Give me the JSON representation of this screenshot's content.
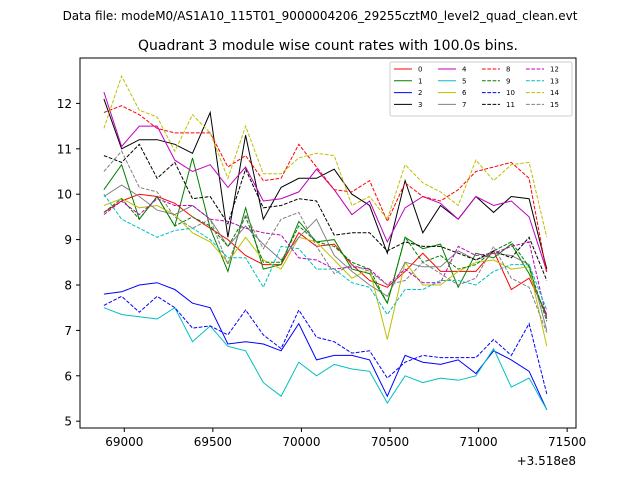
{
  "chart_data": {
    "type": "line",
    "suptitle": "Data file: modeM0/AS1A10_115T01_9000004206_29255cztM0_level2_quad_clean.evt",
    "title": "Quadrant 3 module wise count rates with 100.0s bins.",
    "xlabel": "",
    "ylabel": "",
    "x_offset_label": "+3.518e8",
    "xlim": [
      68750,
      71550
    ],
    "ylim": [
      4.85,
      13.0
    ],
    "xticks": [
      69000,
      69500,
      70000,
      70500,
      71000,
      71500
    ],
    "xtick_labels": [
      "69000",
      "69500",
      "70000",
      "70500",
      "71000",
      "71500"
    ],
    "yticks": [
      5,
      6,
      7,
      8,
      9,
      10,
      11,
      12
    ],
    "ytick_labels": [
      "5",
      "6",
      "7",
      "8",
      "9",
      "10",
      "11",
      "12"
    ],
    "x": [
      68885,
      68985,
      69085,
      69185,
      69285,
      69385,
      69485,
      69585,
      69685,
      69785,
      69885,
      69985,
      70085,
      70185,
      70285,
      70385,
      70485,
      70585,
      70685,
      70785,
      70885,
      70985,
      71085,
      71185,
      71285,
      71385
    ],
    "series": [
      {
        "name": "0",
        "color": "#ff0000",
        "dash": "solid",
        "values": [
          9.6,
          9.85,
          10.0,
          9.95,
          9.8,
          9.5,
          9.25,
          9.0,
          8.65,
          8.45,
          8.45,
          9.15,
          8.85,
          8.9,
          8.45,
          8.1,
          7.95,
          8.3,
          8.7,
          8.3,
          8.3,
          8.3,
          8.75,
          7.9,
          8.15,
          7.35
        ]
      },
      {
        "name": "1",
        "color": "#008000",
        "dash": "solid",
        "values": [
          10.1,
          10.65,
          9.45,
          9.95,
          9.3,
          10.8,
          9.25,
          8.3,
          9.7,
          8.35,
          8.45,
          9.4,
          8.95,
          9.0,
          8.35,
          8.25,
          7.6,
          9.05,
          8.8,
          8.9,
          7.95,
          8.7,
          8.6,
          8.9,
          8.25,
          7.3
        ]
      },
      {
        "name": "2",
        "color": "#0000ff",
        "dash": "solid",
        "values": [
          7.8,
          7.85,
          8.0,
          8.05,
          7.9,
          7.6,
          7.5,
          6.7,
          6.75,
          6.7,
          6.55,
          7.15,
          6.35,
          6.45,
          6.45,
          6.35,
          5.55,
          6.45,
          6.3,
          6.25,
          6.35,
          6.05,
          6.55,
          6.35,
          6.1,
          5.25
        ]
      },
      {
        "name": "3",
        "color": "#000000",
        "dash": "solid",
        "values": [
          12.1,
          11.0,
          11.2,
          11.2,
          11.1,
          10.9,
          11.8,
          9.05,
          11.3,
          9.45,
          10.15,
          10.35,
          10.35,
          10.55,
          10.0,
          9.75,
          8.7,
          10.3,
          9.15,
          9.75,
          9.45,
          9.95,
          9.6,
          9.95,
          9.9,
          8.35
        ]
      },
      {
        "name": "4",
        "color": "#bf00bf",
        "dash": "solid",
        "values": [
          12.25,
          11.05,
          11.5,
          11.5,
          10.75,
          10.5,
          10.65,
          10.15,
          10.6,
          9.85,
          9.9,
          10.05,
          10.55,
          10.1,
          9.55,
          9.85,
          8.95,
          9.7,
          9.95,
          9.8,
          9.45,
          9.95,
          9.75,
          9.85,
          9.5,
          8.3
        ]
      },
      {
        "name": "5",
        "color": "#00bfbf",
        "dash": "solid",
        "values": [
          7.5,
          7.35,
          7.3,
          7.25,
          7.5,
          6.75,
          7.1,
          6.65,
          6.55,
          5.85,
          5.55,
          6.3,
          6.0,
          6.25,
          6.15,
          6.1,
          5.4,
          6.0,
          5.85,
          5.95,
          5.9,
          6.0,
          6.6,
          5.75,
          5.95,
          5.25
        ]
      },
      {
        "name": "6",
        "color": "#bfbf00",
        "dash": "solid",
        "values": [
          9.75,
          9.9,
          9.7,
          9.75,
          9.55,
          9.15,
          8.95,
          8.5,
          9.05,
          8.55,
          8.35,
          9.05,
          8.95,
          8.55,
          8.15,
          8.35,
          6.8,
          8.5,
          8.0,
          8.0,
          8.3,
          8.5,
          8.55,
          8.35,
          8.4,
          6.65
        ]
      },
      {
        "name": "7",
        "color": "#808080",
        "dash": "solid",
        "values": [
          9.95,
          10.2,
          9.95,
          9.65,
          9.55,
          9.75,
          9.45,
          8.85,
          9.3,
          8.9,
          8.55,
          9.05,
          9.45,
          8.65,
          8.3,
          8.0,
          7.75,
          8.5,
          8.4,
          8.4,
          8.75,
          8.55,
          8.7,
          8.65,
          8.45,
          7.0
        ]
      },
      {
        "name": "8",
        "color": "#ff0000",
        "dash": "dashed",
        "values": [
          11.8,
          11.95,
          11.75,
          11.45,
          11.35,
          11.35,
          11.35,
          10.6,
          10.85,
          10.3,
          10.35,
          11.1,
          10.6,
          10.1,
          10.05,
          10.3,
          9.4,
          10.25,
          9.95,
          9.85,
          10.1,
          10.5,
          10.6,
          10.7,
          10.35,
          8.25
        ]
      },
      {
        "name": "9",
        "color": "#008000",
        "dash": "dashed",
        "values": [
          9.6,
          9.9,
          9.45,
          9.95,
          9.3,
          9.5,
          9.3,
          8.85,
          9.5,
          8.5,
          8.5,
          9.3,
          8.95,
          8.85,
          8.5,
          8.35,
          7.6,
          9.05,
          8.5,
          8.65,
          8.35,
          8.45,
          8.75,
          8.95,
          8.4,
          7.2
        ]
      },
      {
        "name": "10",
        "color": "#0000ff",
        "dash": "dashed",
        "values": [
          7.55,
          7.75,
          7.4,
          7.75,
          7.5,
          7.05,
          7.1,
          6.9,
          7.45,
          6.9,
          6.6,
          7.45,
          6.85,
          6.75,
          6.5,
          6.55,
          5.95,
          6.3,
          6.45,
          6.4,
          6.4,
          6.4,
          6.8,
          6.45,
          7.15,
          5.6
        ]
      },
      {
        "name": "11",
        "color": "#000000",
        "dash": "dashed",
        "values": [
          10.85,
          10.7,
          11.1,
          10.35,
          10.7,
          9.9,
          9.95,
          9.35,
          10.55,
          9.7,
          9.75,
          9.9,
          9.85,
          9.1,
          9.15,
          9.15,
          8.75,
          8.95,
          8.85,
          8.85,
          8.7,
          8.55,
          8.75,
          8.6,
          9.05,
          8.1
        ]
      },
      {
        "name": "12",
        "color": "#bf00bf",
        "dash": "dashed",
        "values": [
          9.55,
          9.85,
          9.55,
          9.9,
          9.75,
          9.75,
          9.45,
          9.4,
          9.25,
          9.15,
          9.1,
          8.6,
          8.55,
          8.35,
          8.4,
          8.35,
          8.0,
          8.35,
          8.05,
          8.05,
          8.85,
          8.65,
          8.7,
          8.85,
          8.95,
          7.25
        ]
      },
      {
        "name": "13",
        "color": "#00bfbf",
        "dash": "dashed",
        "values": [
          10.0,
          9.45,
          9.25,
          9.05,
          9.2,
          9.25,
          9.0,
          8.6,
          8.6,
          7.95,
          8.85,
          8.8,
          8.35,
          8.35,
          8.05,
          7.95,
          7.35,
          7.9,
          7.9,
          8.1,
          8.1,
          8.0,
          8.3,
          8.45,
          8.45,
          7.45
        ]
      },
      {
        "name": "14",
        "color": "#bfbf00",
        "dash": "dashed",
        "values": [
          11.45,
          12.6,
          11.85,
          11.7,
          10.95,
          11.75,
          11.35,
          10.35,
          11.5,
          10.45,
          10.45,
          10.8,
          10.9,
          10.85,
          9.75,
          9.95,
          9.45,
          10.65,
          10.25,
          10.05,
          9.75,
          10.75,
          10.3,
          10.65,
          10.7,
          9.05
        ]
      },
      {
        "name": "15",
        "color": "#808080",
        "dash": "dashed",
        "values": [
          10.5,
          10.95,
          10.15,
          10.05,
          9.5,
          9.25,
          9.45,
          8.45,
          9.55,
          8.8,
          9.45,
          9.6,
          8.85,
          8.25,
          8.45,
          8.3,
          8.0,
          8.1,
          8.5,
          8.25,
          8.0,
          8.15,
          8.85,
          8.15,
          7.95,
          6.95
        ]
      }
    ],
    "legend": {
      "placement": "top-right",
      "columns": 4
    }
  }
}
